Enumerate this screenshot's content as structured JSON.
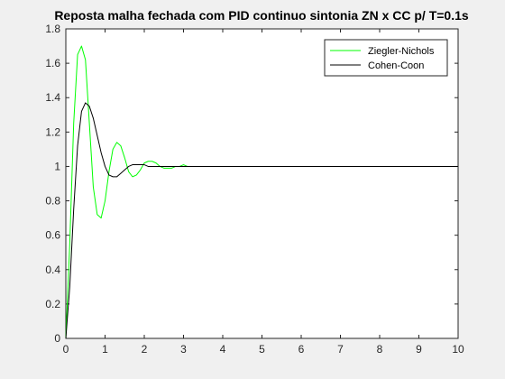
{
  "chart_data": {
    "type": "line",
    "title": "Reposta malha fechada com PID continuo sintonia ZN x CC p/ T=0.1s",
    "xlabel": "",
    "ylabel": "",
    "xlim": [
      0,
      10
    ],
    "ylim": [
      0,
      1.8
    ],
    "xticks": [
      "0",
      "1",
      "2",
      "3",
      "4",
      "5",
      "6",
      "7",
      "8",
      "9",
      "10"
    ],
    "yticks": [
      "0",
      "0.2",
      "0.4",
      "0.6",
      "0.8",
      "1",
      "1.2",
      "1.4",
      "1.6",
      "1.8"
    ],
    "grid": false,
    "legend_position": "top-right",
    "series": [
      {
        "name": "Ziegler-Nichols",
        "color": "#00ff00",
        "x": [
          0,
          0.1,
          0.2,
          0.3,
          0.4,
          0.5,
          0.6,
          0.7,
          0.8,
          0.9,
          1.0,
          1.1,
          1.2,
          1.3,
          1.4,
          1.5,
          1.6,
          1.7,
          1.8,
          1.9,
          2.0,
          2.1,
          2.2,
          2.3,
          2.4,
          2.5,
          2.6,
          2.7,
          2.8,
          2.9,
          3.0,
          3.1,
          3.2,
          3.3,
          3.4,
          3.5,
          3.6,
          3.7,
          3.8,
          3.9,
          4.0,
          4.5,
          5,
          6,
          7,
          8,
          9,
          10
        ],
        "y": [
          0,
          0.55,
          1.25,
          1.65,
          1.7,
          1.62,
          1.25,
          0.88,
          0.72,
          0.7,
          0.8,
          0.97,
          1.1,
          1.14,
          1.12,
          1.05,
          0.97,
          0.94,
          0.95,
          0.98,
          1.02,
          1.03,
          1.03,
          1.02,
          1.0,
          0.99,
          0.99,
          0.99,
          1.0,
          1.0,
          1.01,
          1.0,
          1.0,
          1.0,
          1.0,
          1.0,
          1.0,
          1.0,
          1.0,
          1.0,
          1.0,
          1.0,
          1.0,
          1.0,
          1.0,
          1.0,
          1.0,
          1.0
        ]
      },
      {
        "name": "Cohen-Coon",
        "color": "#000000",
        "x": [
          0,
          0.1,
          0.2,
          0.3,
          0.4,
          0.5,
          0.6,
          0.7,
          0.8,
          0.9,
          1.0,
          1.1,
          1.2,
          1.3,
          1.4,
          1.5,
          1.6,
          1.7,
          1.8,
          1.9,
          2.0,
          2.1,
          2.2,
          2.3,
          2.4,
          2.5,
          2.6,
          2.7,
          2.8,
          2.9,
          3.0,
          3.5,
          4,
          5,
          6,
          7,
          8,
          9,
          10
        ],
        "y": [
          0,
          0.3,
          0.75,
          1.12,
          1.32,
          1.37,
          1.35,
          1.28,
          1.18,
          1.08,
          1.0,
          0.95,
          0.94,
          0.94,
          0.96,
          0.98,
          1.0,
          1.01,
          1.01,
          1.01,
          1.01,
          1.0,
          1.0,
          1.0,
          1.0,
          1.0,
          1.0,
          1.0,
          1.0,
          1.0,
          1.0,
          1.0,
          1.0,
          1.0,
          1.0,
          1.0,
          1.0,
          1.0,
          1.0
        ]
      }
    ]
  }
}
